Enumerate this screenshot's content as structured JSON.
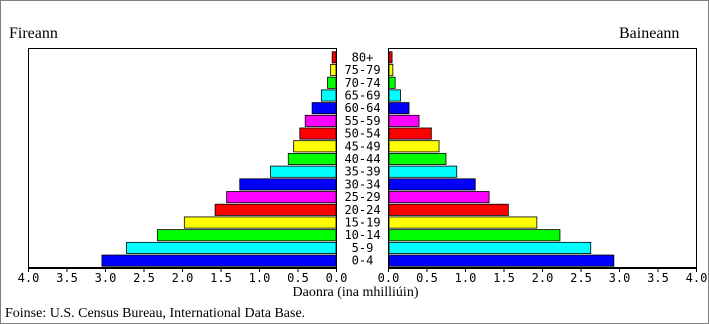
{
  "chart_data": {
    "type": "bar",
    "orientation": "horizontal",
    "categories": [
      "0-4",
      "5-9",
      "10-14",
      "15-19",
      "20-24",
      "25-29",
      "30-34",
      "35-39",
      "40-44",
      "45-49",
      "50-54",
      "55-59",
      "60-64",
      "65-69",
      "70-74",
      "75-79",
      "80+"
    ],
    "series": [
      {
        "name": "Fireann",
        "side": "left",
        "values": [
          3.04,
          2.72,
          2.32,
          1.97,
          1.57,
          1.42,
          1.25,
          0.85,
          0.62,
          0.55,
          0.47,
          0.4,
          0.31,
          0.19,
          0.11,
          0.07,
          0.05
        ]
      },
      {
        "name": "Baineann",
        "side": "right",
        "values": [
          2.92,
          2.62,
          2.22,
          1.92,
          1.55,
          1.3,
          1.12,
          0.88,
          0.74,
          0.65,
          0.55,
          0.39,
          0.26,
          0.15,
          0.08,
          0.05,
          0.04
        ]
      }
    ],
    "bar_colors": [
      "#0000ff",
      "#00ffff",
      "#00ff00",
      "#ffff00",
      "#ff0000",
      "#ff00ff",
      "#0000ff",
      "#00ffff",
      "#00ff00",
      "#ffff00",
      "#ff0000",
      "#ff00ff",
      "#0000ff",
      "#00ffff",
      "#00ff00",
      "#ffff00",
      "#ff0000"
    ],
    "left_ticks": [
      "4.0",
      "3.5",
      "3.0",
      "2.5",
      "2.0",
      "1.5",
      "1.0",
      "0.5",
      "0.0"
    ],
    "right_ticks": [
      "0.0",
      "0.5",
      "1.0",
      "1.5",
      "2.0",
      "2.5",
      "3.0",
      "3.5",
      "4.0"
    ],
    "xlim": [
      0,
      4.0
    ],
    "xlabel": "Daonra (ina mhilliúin)",
    "ylabel": "",
    "title": "",
    "grid": false
  },
  "labels": {
    "left_heading": "Fireann",
    "right_heading": "Baineann",
    "source": "Foinse: U.S. Census Bureau, International Data Base."
  }
}
